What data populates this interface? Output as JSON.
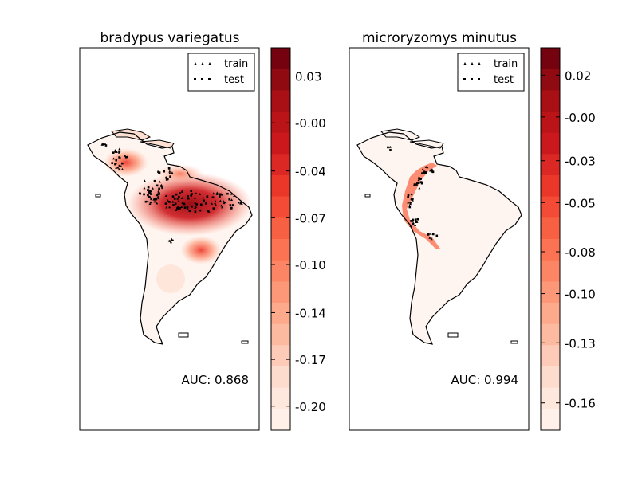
{
  "chart_data": [
    {
      "type": "heatmap",
      "title": "bradypus variegatus",
      "xlabel": "",
      "ylabel": "",
      "annotation": "AUC: 0.868",
      "legend": {
        "placement": "top-right",
        "entries": [
          "train",
          "test"
        ]
      },
      "colorbar": {
        "colormap": "Reds",
        "range": [
          -0.22,
          0.05
        ],
        "tick_labels": [
          "0.03",
          "-0.00",
          "-0.04",
          "-0.07",
          "-0.10",
          "-0.14",
          "-0.17",
          "-0.20"
        ],
        "tick_values": [
          0.03,
          -0.003,
          -0.037,
          -0.07,
          -0.103,
          -0.137,
          -0.17,
          -0.203
        ]
      },
      "grid": false,
      "hotspots": [
        {
          "name": "amazon-basin",
          "intensity": 0.92
        },
        {
          "name": "central-america",
          "intensity": 0.55
        },
        {
          "name": "atlantic-forest",
          "intensity": 0.5
        },
        {
          "name": "north-coast",
          "intensity": 0.45
        }
      ]
    },
    {
      "type": "heatmap",
      "title": "microryzomys minutus",
      "xlabel": "",
      "ylabel": "",
      "annotation": "AUC: 0.994",
      "legend": {
        "placement": "top-right",
        "entries": [
          "train",
          "test"
        ]
      },
      "colorbar": {
        "colormap": "Reds",
        "range": [
          -0.175,
          0.035
        ],
        "tick_labels": [
          "0.02",
          "-0.00",
          "-0.03",
          "-0.05",
          "-0.08",
          "-0.10",
          "-0.13",
          "-0.16"
        ],
        "tick_values": [
          0.02,
          -0.003,
          -0.027,
          -0.05,
          -0.077,
          -0.1,
          -0.127,
          -0.16
        ]
      },
      "grid": false,
      "hotspots": [
        {
          "name": "northern-andes",
          "intensity": 0.6
        }
      ]
    }
  ]
}
